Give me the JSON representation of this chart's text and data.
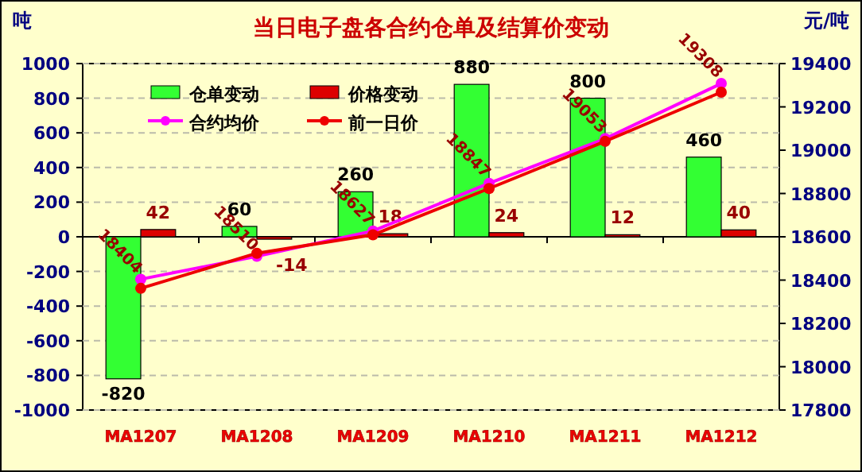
{
  "chart_data": {
    "type": "bar",
    "title": "当日电子盘各合约仓单及结算价变动",
    "ylabel": "吨",
    "y2label": "元/吨",
    "categories": [
      "MA1207",
      "MA1208",
      "MA1209",
      "MA1210",
      "MA1211",
      "MA1212"
    ],
    "series": [
      {
        "name": "仓单变动",
        "type": "bar",
        "color": "#33ff33",
        "values": [
          -820,
          60,
          260,
          880,
          800,
          460
        ],
        "value_labels": [
          "-820",
          "60",
          "260",
          "880",
          "800",
          "460"
        ]
      },
      {
        "name": "价格变动",
        "type": "bar",
        "color": "#dd0000",
        "values": [
          42,
          -14,
          18,
          24,
          12,
          40
        ],
        "value_labels": [
          "42",
          "-14",
          "18",
          "24",
          "12",
          "40"
        ]
      },
      {
        "name": "合约均价",
        "type": "line",
        "axis": "y2",
        "color": "#ff00ff",
        "marker": "circle",
        "values": [
          18404,
          18510,
          18627,
          18847,
          19053,
          19308
        ],
        "value_labels": [
          "18404",
          "18510",
          "18627",
          "18847",
          "19053",
          "19308"
        ]
      },
      {
        "name": "前一日价",
        "type": "line",
        "axis": "y2",
        "color": "#ee0000",
        "marker": "circle",
        "values": [
          18362,
          18524,
          18609,
          18823,
          19041,
          19268
        ]
      }
    ],
    "ylim": [
      -1000,
      1000
    ],
    "yticks": [
      -1000,
      -800,
      -600,
      -400,
      -200,
      0,
      200,
      400,
      600,
      800,
      1000
    ],
    "y2lim": [
      17800,
      19400
    ],
    "y2ticks": [
      17800,
      18000,
      18200,
      18400,
      18600,
      18800,
      19000,
      19200,
      19400
    ],
    "grid": "y",
    "legend": "top left"
  }
}
